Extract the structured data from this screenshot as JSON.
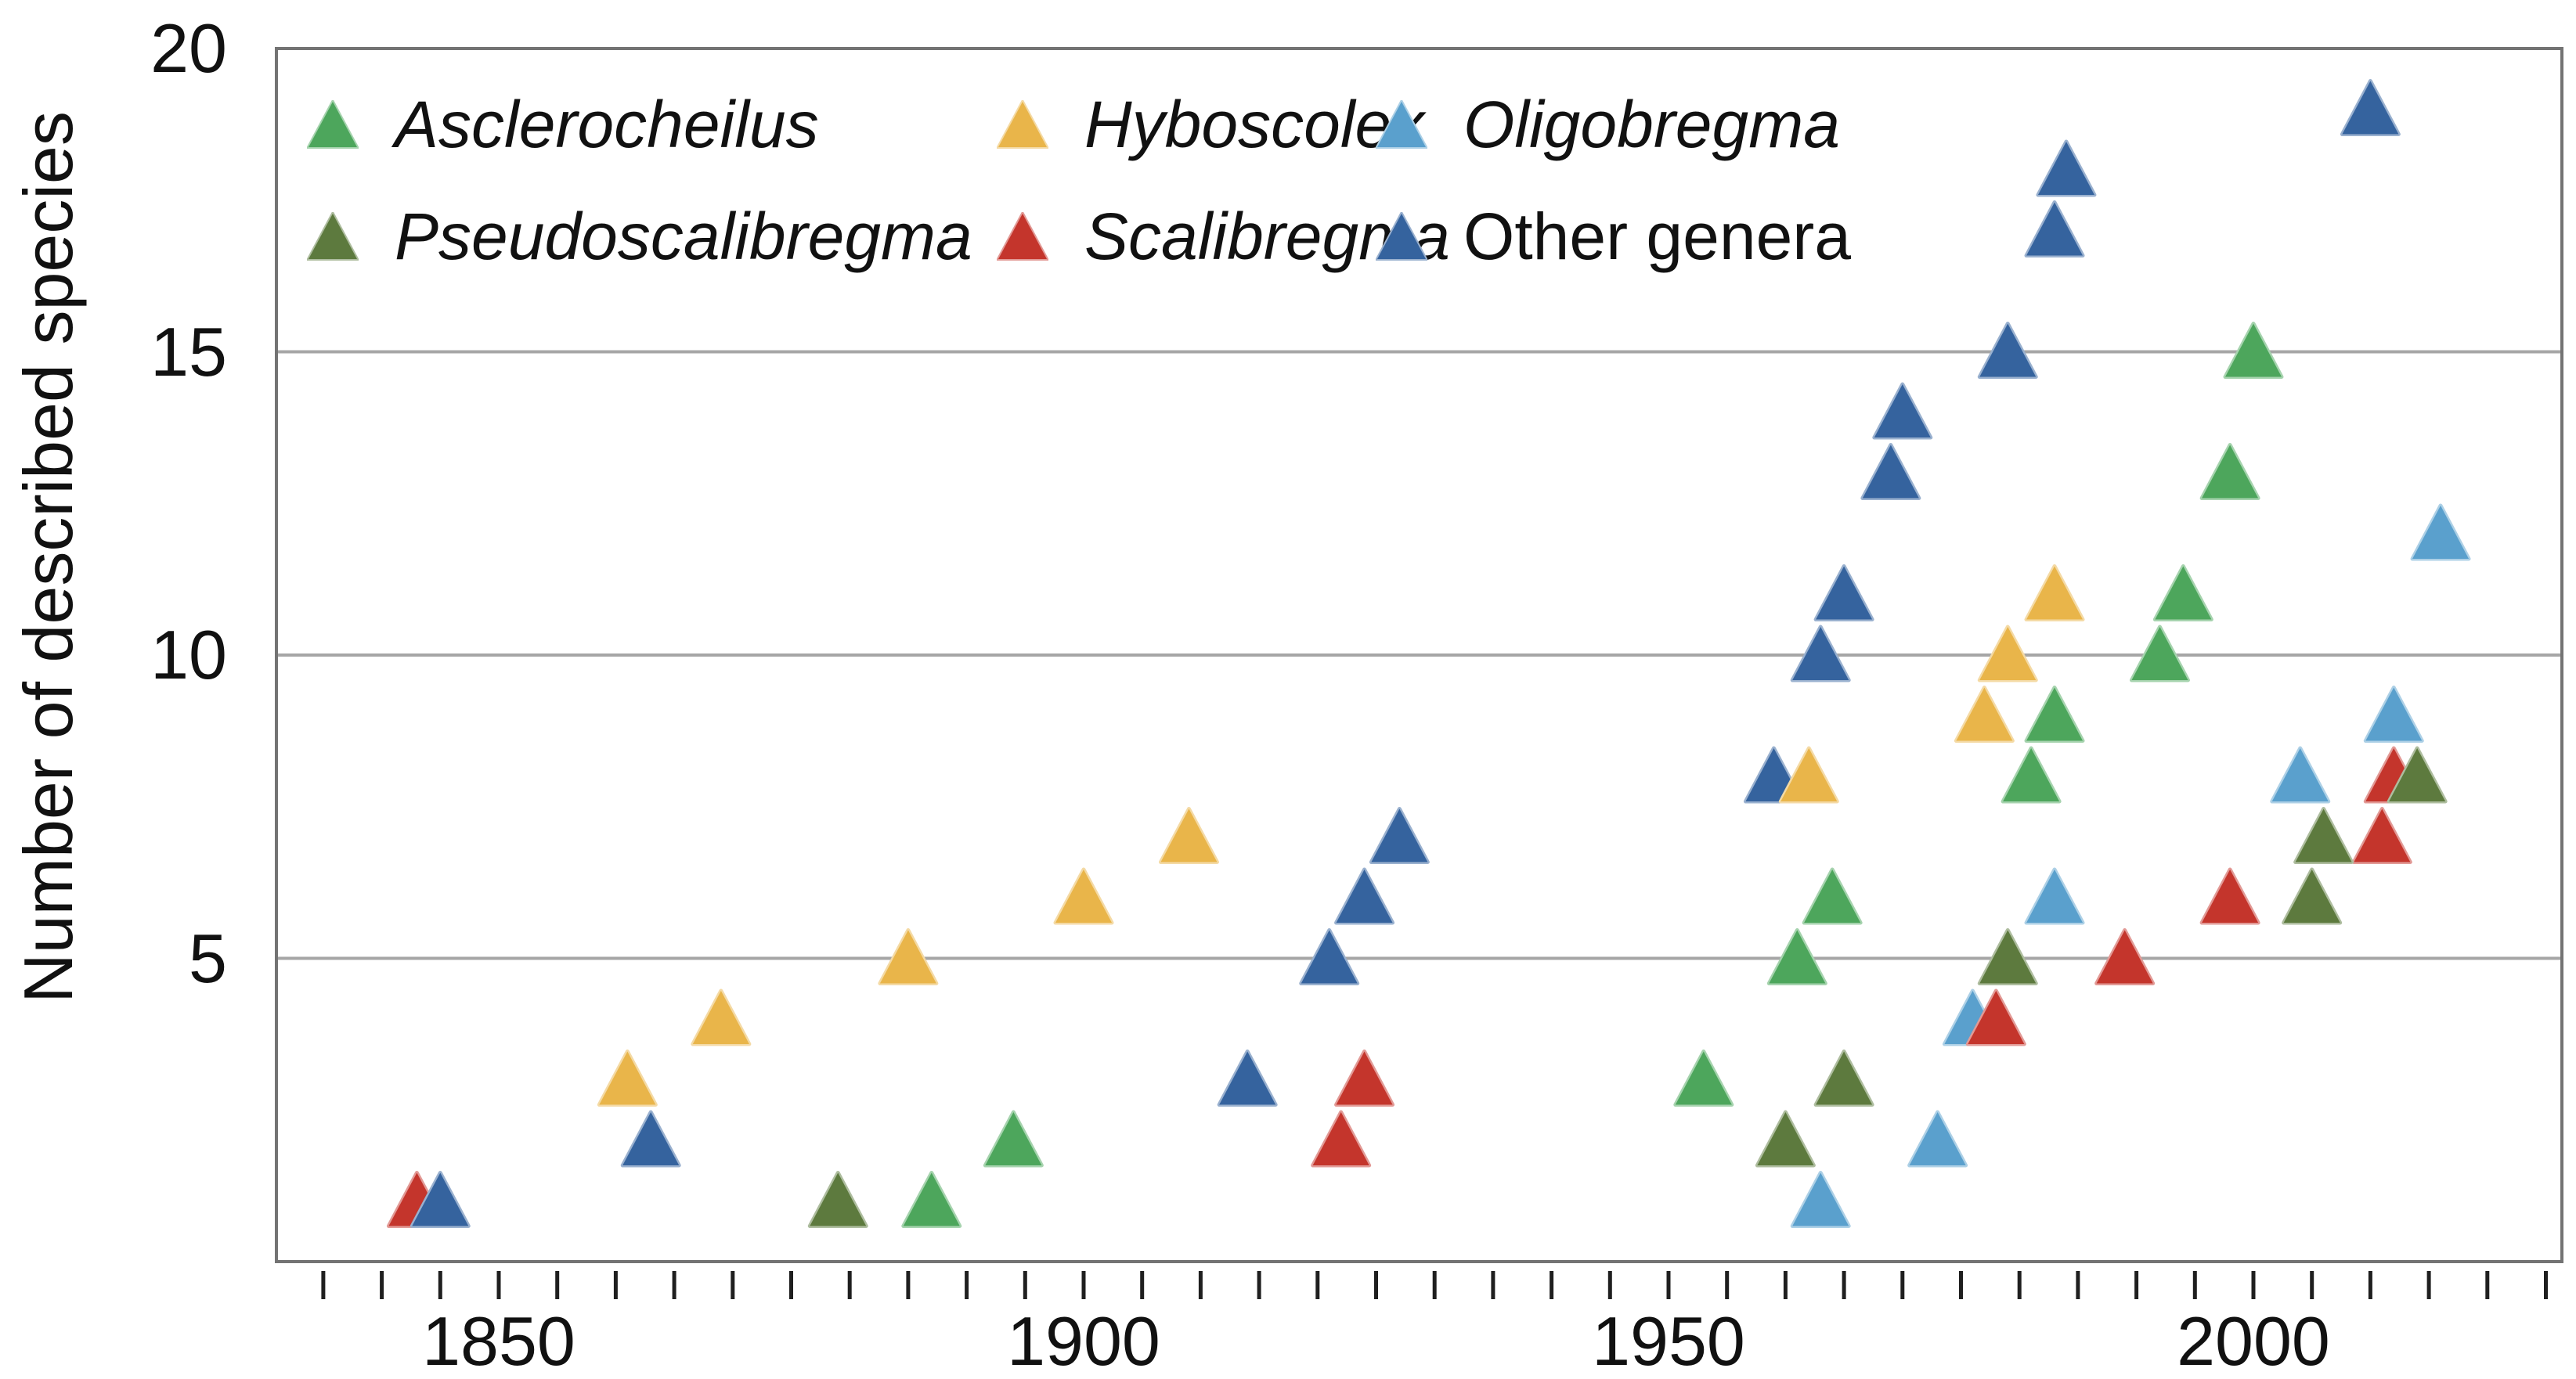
{
  "chart_data": {
    "type": "scatter",
    "title": "",
    "xlabel": "",
    "ylabel": "Number of described species",
    "marker": "triangle-up",
    "grid": true,
    "legend_position": "top-left-inside",
    "ylim": [
      0,
      20
    ],
    "xlim": [
      1831,
      2026
    ],
    "y_tick_labels": [
      "20",
      "15",
      "10",
      "5"
    ],
    "y_tick_values": [
      20,
      15,
      10,
      5
    ],
    "y_gridline_values": [
      5,
      10,
      15
    ],
    "x_tick_labels": [
      "1850",
      "1900",
      "1950",
      "2000"
    ],
    "x_tick_values": [
      1850,
      1900,
      1950,
      2000
    ],
    "x_minor_ticks": {
      "start": 1835,
      "end": 2025,
      "step": 5
    },
    "series": [
      {
        "name": "Asclerocheilus",
        "color": "#4da65c",
        "italic": true,
        "points": [
          [
            1887,
            1
          ],
          [
            1894,
            2
          ],
          [
            1953,
            3
          ],
          [
            1961,
            5
          ],
          [
            1964,
            6
          ],
          [
            1981,
            8
          ],
          [
            1983,
            9
          ],
          [
            1992,
            10
          ],
          [
            1994,
            11
          ],
          [
            1998,
            13
          ],
          [
            2000,
            15
          ]
        ]
      },
      {
        "name": "Hyboscolex",
        "color": "#e9b54a",
        "italic": true,
        "points": [
          [
            1861,
            3
          ],
          [
            1869,
            4
          ],
          [
            1885,
            5
          ],
          [
            1900,
            6
          ],
          [
            1909,
            7
          ],
          [
            1962,
            8
          ],
          [
            1977,
            9
          ],
          [
            1979,
            10
          ],
          [
            1983,
            11
          ]
        ]
      },
      {
        "name": "Oligobregma",
        "color": "#5aa0cd",
        "italic": true,
        "points": [
          [
            1963,
            1
          ],
          [
            1973,
            2
          ],
          [
            1976,
            4
          ],
          [
            1983,
            6
          ],
          [
            2004,
            8
          ],
          [
            2012,
            9
          ],
          [
            2016,
            12
          ]
        ]
      },
      {
        "name": "Pseudoscalibregma",
        "color": "#5d7a3e",
        "italic": true,
        "points": [
          [
            1879,
            1
          ],
          [
            1960,
            2
          ],
          [
            1965,
            3
          ],
          [
            1979,
            5
          ],
          [
            2005,
            6
          ],
          [
            2006,
            7
          ],
          [
            2014,
            8
          ]
        ]
      },
      {
        "name": "Scalibregma",
        "color": "#c4352c",
        "italic": true,
        "points": [
          [
            1843,
            1
          ],
          [
            1922,
            2
          ],
          [
            1924,
            3
          ],
          [
            1978,
            4
          ],
          [
            1989,
            5
          ],
          [
            1998,
            6
          ],
          [
            2011,
            7
          ],
          [
            2012,
            8
          ]
        ]
      },
      {
        "name": "Other genera",
        "color": "#35639e",
        "italic": false,
        "points": [
          [
            1845,
            1
          ],
          [
            1863,
            2
          ],
          [
            1914,
            3
          ],
          [
            1921,
            5
          ],
          [
            1924,
            6
          ],
          [
            1927,
            7
          ],
          [
            1959,
            8
          ],
          [
            1963,
            10
          ],
          [
            1965,
            11
          ],
          [
            1969,
            13
          ],
          [
            1970,
            14
          ],
          [
            1979,
            15
          ],
          [
            1983,
            17
          ],
          [
            1984,
            18
          ],
          [
            2010,
            19
          ]
        ]
      }
    ],
    "draw_order": [
      2,
      4,
      5,
      1,
      3,
      0
    ],
    "colors": {
      "plot_border": "#737373",
      "gridline": "#a6a6a6",
      "tick": "#1f1f1f",
      "text": "#111111",
      "background": "#ffffff"
    }
  }
}
